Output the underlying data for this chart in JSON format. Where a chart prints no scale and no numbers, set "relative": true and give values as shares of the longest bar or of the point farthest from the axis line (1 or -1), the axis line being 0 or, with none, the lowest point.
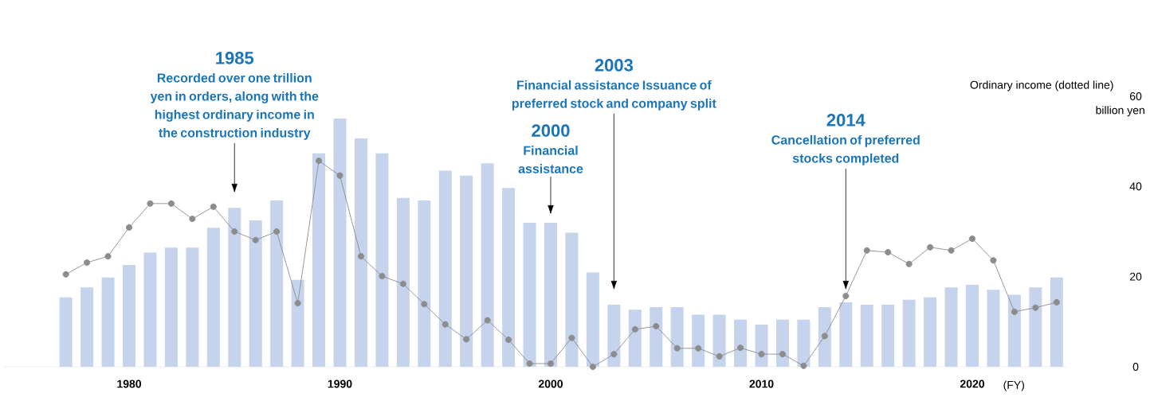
{
  "chart_data": [
    {
      "type": "bar",
      "relative": true,
      "color": "#c5d3ed",
      "categories": [
        null,
        null,
        null,
        null,
        null,
        null,
        null,
        null,
        null,
        null,
        null,
        null,
        null,
        null,
        null,
        null,
        null,
        null,
        null,
        null,
        null,
        null,
        null,
        null,
        null,
        null,
        null,
        null,
        null,
        null,
        null,
        null,
        null,
        null,
        null,
        null,
        null,
        null,
        null,
        null,
        null,
        null,
        null,
        null,
        null,
        null,
        null,
        null
      ],
      "values": [
        0.28,
        0.32,
        0.36,
        0.41,
        0.46,
        0.48,
        0.48,
        0.56,
        0.64,
        0.59,
        0.67,
        0.35,
        0.86,
        1,
        0.92,
        0.86,
        0.68,
        0.67,
        0.79,
        0.77,
        0.82,
        0.72,
        0.58,
        0.58,
        0.54,
        0.38,
        0.25,
        0.23,
        0.24,
        0.24,
        0.21,
        0.21,
        0.19,
        0.17,
        0.19,
        0.19,
        0.24,
        0.26,
        0.25,
        0.25,
        0.27,
        0.28,
        0.32,
        0.33,
        0.31,
        0.29,
        0.32,
        0.36
      ]
    },
    {
      "type": "line",
      "color": "#8c8c8c",
      "marker": "circle",
      "line_style": "solid",
      "xlim": [
        1974,
        2024.5
      ],
      "ylim": [
        0,
        60
      ],
      "xticks": [
        1980,
        1990,
        2000,
        2010,
        2020
      ],
      "yticks": [
        0,
        20,
        40,
        60
      ],
      "xlabel": "(FY)",
      "ylabel": "Ordinary income (dotted line)",
      "x": [
        1977,
        1978,
        1979,
        1980,
        1981,
        1982,
        1983,
        1984,
        1985,
        1986,
        1987,
        1988,
        1989,
        1990,
        1991,
        1992,
        1993,
        1994,
        1995,
        1996,
        1997,
        1998,
        1999,
        2000,
        2001,
        2002,
        2003,
        2004,
        2005,
        2006,
        2007,
        2008,
        2009,
        2010,
        2011,
        2012,
        2013,
        2014,
        2015,
        2016,
        2017,
        2018,
        2019,
        2020,
        2021,
        2022,
        2023,
        2024
      ],
      "values": [
        20.5,
        23.1,
        24.5,
        30.9,
        36.2,
        36.2,
        32.8,
        35.5,
        30.0,
        28.1,
        30.0,
        14.1,
        45.7,
        42.4,
        24.5,
        20.1,
        18.4,
        13.9,
        9.4,
        6.1,
        10.3,
        6.0,
        0.7,
        0.7,
        6.4,
        0,
        2.8,
        8.3,
        9.0,
        4.1,
        4.1,
        2.3,
        4.2,
        2.8,
        2.8,
        0.2,
        6.8,
        15.7,
        25.8,
        25.4,
        22.8,
        26.5,
        25.8,
        28.4,
        23.6,
        12.2,
        13.1,
        14.3
      ],
      "annotations": [
        "1985",
        "Recorded over one trillion yen in orders, along with the highest ordinary income in the construction industry",
        "2000",
        "Financial assistance",
        "2003",
        "Financial assistance Issuance of preferred stock and company split",
        "2014",
        "Cancellation of preferred stocks completed",
        "billion yen"
      ]
    }
  ]
}
